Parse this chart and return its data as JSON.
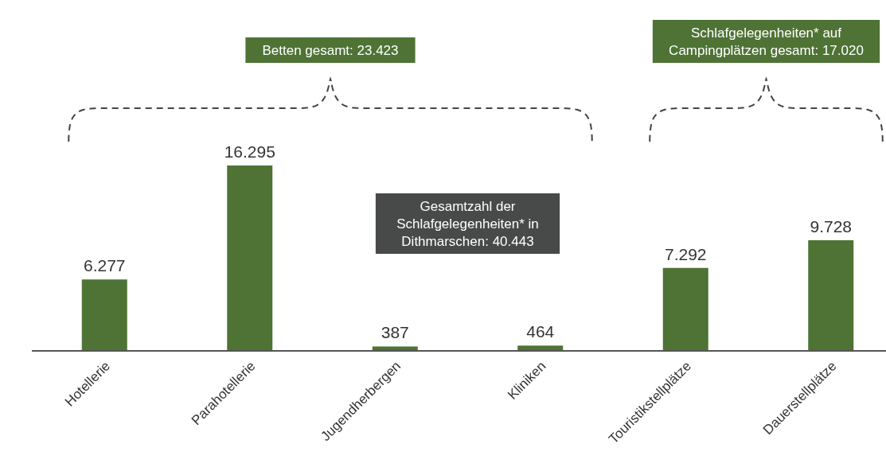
{
  "chart_data": {
    "type": "bar",
    "categories": [
      "Hotellerie",
      "Parahotellerie",
      "Jugendherbergen",
      "Kliniken",
      "Touristikstellplätze",
      "Dauerstellplätze"
    ],
    "values": [
      6277,
      16295,
      387,
      464,
      7292,
      9728
    ],
    "value_labels": [
      "6.277",
      "16.295",
      "387",
      "464",
      "7.292",
      "9.728"
    ],
    "color": "#4e7335",
    "annotations": [
      "Betten gesamt: 23.423",
      "Schlafgelegenheiten* auf Campingplätzen gesamt: 17.020",
      "Gesamtzahl der Schlafgelegenheiten* in Dithmarschen: 40.443"
    ]
  }
}
